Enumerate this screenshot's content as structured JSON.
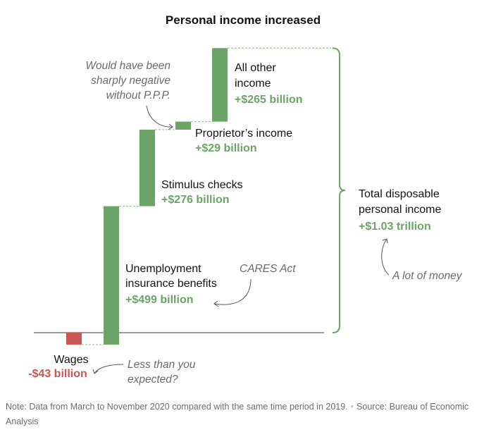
{
  "chart_data": {
    "type": "waterfall",
    "title": "Personal income increased",
    "unit": "billion",
    "baseline": 0,
    "steps": [
      {
        "label": "Wages",
        "value": -43,
        "value_label": "-$43 billion"
      },
      {
        "label": "Unemployment insurance benefits",
        "label_lines": [
          "Unemployment",
          "insurance benefits"
        ],
        "value": 499,
        "value_label": "+$499 billion"
      },
      {
        "label": "Stimulus checks",
        "value": 276,
        "value_label": "+$276 billion"
      },
      {
        "label": "Proprietor’s income",
        "value": 29,
        "value_label": "+$29 billion"
      },
      {
        "label": "All other income",
        "label_lines": [
          "All other",
          "income"
        ],
        "value": 265,
        "value_label": "+$265 billion"
      }
    ],
    "total": {
      "label": "Total disposable personal income",
      "label_lines": [
        "Total disposable",
        "personal income"
      ],
      "value": 1030,
      "value_label": "+$1.03 trillion"
    },
    "annotations": [
      {
        "target": "Proprietor’s income",
        "text_lines": [
          "Would have been",
          "sharply negative",
          "without P.P.P."
        ]
      },
      {
        "target": "Unemployment insurance benefits",
        "text_lines": [
          "CARES Act"
        ]
      },
      {
        "target": "Wages",
        "text_lines": [
          "Less than you",
          "expected?"
        ]
      },
      {
        "target": "Total disposable personal income",
        "text_lines": [
          "A lot of money"
        ]
      }
    ],
    "colors": {
      "positive": "#6aa565",
      "negative": "#c9574f",
      "axis": "#333333",
      "annotation": "#6b6b6b",
      "connector": "#9fc69b"
    }
  },
  "footer": {
    "note": "Note: Data from March to November 2020 compared with the same time period in 2019.",
    "separator": "•",
    "source": "Source: Bureau of Economic Analysis"
  }
}
